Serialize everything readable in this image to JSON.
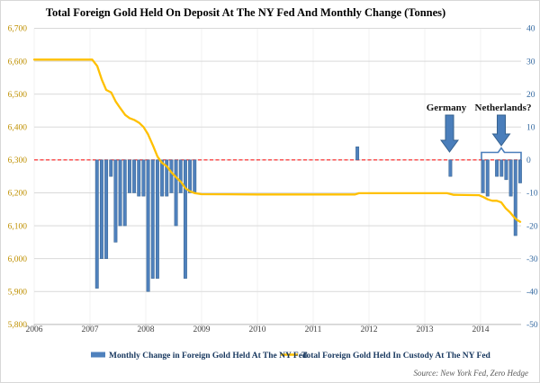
{
  "chart_data": {
    "type": "combo-bar-line",
    "title": "Total Foreign Gold Held On Deposit At The NY Fed And Monthly Change (Tonnes)",
    "x_ticks": [
      "2006",
      "2007",
      "2008",
      "2009",
      "2010",
      "2011",
      "2012",
      "2013",
      "2014"
    ],
    "left_axis": {
      "label_color": "#BF9000",
      "ticks": [
        "6,700",
        "6,600",
        "6,500",
        "6,400",
        "6,300",
        "6,200",
        "6,100",
        "6,000",
        "5,900",
        "5,800"
      ],
      "values": [
        6700,
        6600,
        6500,
        6400,
        6300,
        6200,
        6100,
        6000,
        5900,
        5800
      ],
      "range": [
        5800,
        6700
      ]
    },
    "right_axis": {
      "label_color": "#31679F",
      "ticks": [
        "40",
        "30",
        "20",
        "10",
        "0",
        "-10",
        "-20",
        "-30",
        "-40",
        "-50"
      ],
      "values": [
        40,
        30,
        20,
        10,
        0,
        -10,
        -20,
        -30,
        -40,
        -50
      ],
      "range": [
        -50,
        40
      ]
    },
    "zero_reference_line": {
      "value": 0,
      "color": "#FF0000",
      "style": "dashed"
    },
    "grid": {
      "horizontal": true,
      "color": "#D9D9D9",
      "vertical_faint": true,
      "vertical_color": "#F2F2F2"
    },
    "series": [
      {
        "name": "Monthly Change in Foreign Gold Held At The NY Fed",
        "type": "bar",
        "color": "#4F81BD",
        "stroke": "#36618E",
        "points": [
          {
            "year": 2007,
            "month": 2,
            "value": -39
          },
          {
            "year": 2007,
            "month": 3,
            "value": -30
          },
          {
            "year": 2007,
            "month": 4,
            "value": -30
          },
          {
            "year": 2007,
            "month": 5,
            "value": -5
          },
          {
            "year": 2007,
            "month": 6,
            "value": -25
          },
          {
            "year": 2007,
            "month": 7,
            "value": -20
          },
          {
            "year": 2007,
            "month": 8,
            "value": -20
          },
          {
            "year": 2007,
            "month": 9,
            "value": -10
          },
          {
            "year": 2007,
            "month": 10,
            "value": -10
          },
          {
            "year": 2007,
            "month": 11,
            "value": -11
          },
          {
            "year": 2007,
            "month": 12,
            "value": -11
          },
          {
            "year": 2008,
            "month": 1,
            "value": -40
          },
          {
            "year": 2008,
            "month": 2,
            "value": -36
          },
          {
            "year": 2008,
            "month": 3,
            "value": -36
          },
          {
            "year": 2008,
            "month": 4,
            "value": -11
          },
          {
            "year": 2008,
            "month": 5,
            "value": -11
          },
          {
            "year": 2008,
            "month": 6,
            "value": -10
          },
          {
            "year": 2008,
            "month": 7,
            "value": -20
          },
          {
            "year": 2008,
            "month": 8,
            "value": -10
          },
          {
            "year": 2008,
            "month": 9,
            "value": -36
          },
          {
            "year": 2008,
            "month": 10,
            "value": -10
          },
          {
            "year": 2008,
            "month": 11,
            "value": -10
          },
          {
            "year": 2011,
            "month": 10,
            "value": 4
          },
          {
            "year": 2013,
            "month": 6,
            "value": -5
          },
          {
            "year": 2014,
            "month": 1,
            "value": -10
          },
          {
            "year": 2014,
            "month": 2,
            "value": -11
          },
          {
            "year": 2014,
            "month": 4,
            "value": -5
          },
          {
            "year": 2014,
            "month": 5,
            "value": -5
          },
          {
            "year": 2014,
            "month": 6,
            "value": -6
          },
          {
            "year": 2014,
            "month": 7,
            "value": -11
          },
          {
            "year": 2014,
            "month": 8,
            "value": -23
          },
          {
            "year": 2014,
            "month": 9,
            "value": -7
          }
        ]
      },
      {
        "name": "Total Foreign Gold Held In Custody At The NY Fed",
        "type": "line",
        "color": "#FFC000",
        "points": [
          [
            2006.0,
            6605
          ],
          [
            2007.04,
            6605
          ],
          [
            2007.13,
            6585
          ],
          [
            2007.21,
            6545
          ],
          [
            2007.29,
            6513
          ],
          [
            2007.38,
            6505
          ],
          [
            2007.46,
            6478
          ],
          [
            2007.54,
            6458
          ],
          [
            2007.63,
            6437
          ],
          [
            2007.71,
            6427
          ],
          [
            2007.8,
            6421
          ],
          [
            2007.88,
            6413
          ],
          [
            2007.96,
            6400
          ],
          [
            2008.04,
            6378
          ],
          [
            2008.13,
            6343
          ],
          [
            2008.21,
            6310
          ],
          [
            2008.29,
            6291
          ],
          [
            2008.38,
            6280
          ],
          [
            2008.46,
            6262
          ],
          [
            2008.54,
            6248
          ],
          [
            2008.63,
            6233
          ],
          [
            2008.71,
            6214
          ],
          [
            2008.79,
            6205
          ],
          [
            2008.88,
            6199
          ],
          [
            2009.0,
            6196
          ],
          [
            2010.0,
            6195
          ],
          [
            2011.0,
            6195
          ],
          [
            2011.75,
            6195
          ],
          [
            2011.82,
            6199
          ],
          [
            2012.5,
            6199
          ],
          [
            2013.4,
            6199
          ],
          [
            2013.52,
            6194
          ],
          [
            2013.97,
            6193
          ],
          [
            2014.05,
            6187
          ],
          [
            2014.13,
            6180
          ],
          [
            2014.21,
            6176
          ],
          [
            2014.29,
            6176
          ],
          [
            2014.37,
            6171
          ],
          [
            2014.45,
            6153
          ],
          [
            2014.53,
            6140
          ],
          [
            2014.6,
            6126
          ],
          [
            2014.65,
            6118
          ],
          [
            2014.71,
            6112
          ]
        ]
      }
    ],
    "annotations": [
      {
        "label": "Germany",
        "target": "2013-06",
        "arrow_color": "#4A7EBB"
      },
      {
        "label": "Netherlands?",
        "target": "2014 cluster",
        "arrow_color": "#4A7EBB",
        "bracket": true
      }
    ],
    "legend": {
      "items": [
        {
          "label": "Monthly Change in Foreign Gold Held At The NY Fed",
          "swatch": "bar",
          "color": "#4F81BD"
        },
        {
          "label": "Total Foreign Gold Held In Custody At The NY Fed",
          "swatch": "line",
          "color": "#FFC000"
        }
      ]
    },
    "source": "Source: New York Fed, Zero Hedge"
  },
  "colors": {
    "bar": "#4F81BD",
    "bar_stroke": "#36618E",
    "line": "#FFC000",
    "zero_line": "#FF0000",
    "grid": "#D9D9D9",
    "grid_vertical": "#F2F2F2",
    "axis_bottom": "#B7B7B7",
    "left_labels": "#BF9000",
    "right_labels": "#31679F",
    "x_labels": "#404040",
    "legend_text": "#17375E",
    "annotation_text": "#111111",
    "arrow_fill": "#4A7EBB",
    "arrow_stroke": "#36618E",
    "source_text": "#595959"
  }
}
